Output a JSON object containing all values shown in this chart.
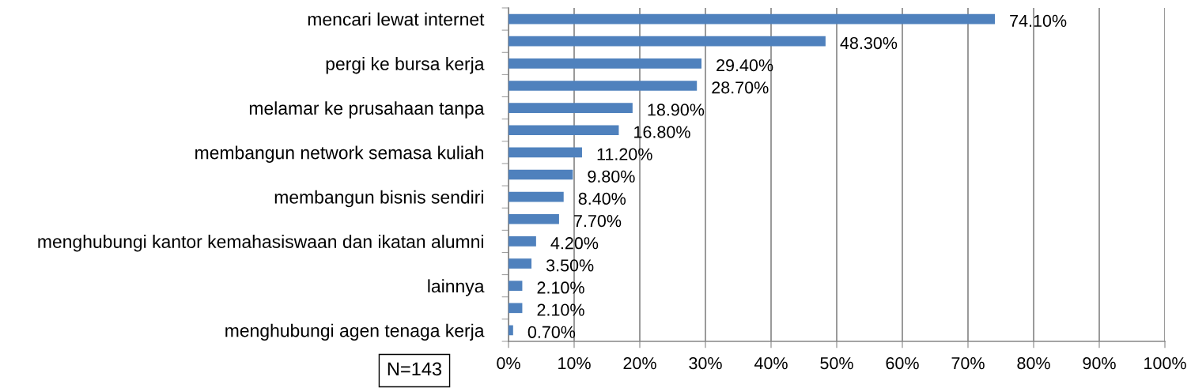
{
  "chart_data": {
    "type": "bar",
    "orientation": "horizontal",
    "categories": [
      "mencari lewat internet",
      null,
      "pergi ke bursa kerja",
      null,
      "melamar ke prusahaan tanpa",
      null,
      "membangun network semasa kuliah",
      null,
      "membangun bisnis sendiri",
      null,
      "menghubungi kantor kemahasiswaan dan ikatan alumni",
      null,
      "lainnya",
      null,
      "menghubungi agen tenaga kerja"
    ],
    "values": [
      74.1,
      48.3,
      29.4,
      28.7,
      18.9,
      16.8,
      11.2,
      9.8,
      8.4,
      7.7,
      4.2,
      3.5,
      2.1,
      2.1,
      0.7
    ],
    "value_labels": [
      "74.10%",
      "48.30%",
      "29.40%",
      "28.70%",
      "18.90%",
      "16.80%",
      "11.20%",
      "9.80%",
      "8.40%",
      "7.70%",
      "4.20%",
      "3.50%",
      "2.10%",
      "2.10%",
      "0.70%"
    ],
    "color": "#4f81bd",
    "xlim": [
      0,
      100
    ],
    "xticks": [
      {
        "value": 0,
        "label": "0%"
      },
      {
        "value": 10,
        "label": "10%"
      },
      {
        "value": 20,
        "label": "20%"
      },
      {
        "value": 30,
        "label": "30%"
      },
      {
        "value": 40,
        "label": "40%"
      },
      {
        "value": 50,
        "label": "50%"
      },
      {
        "value": 60,
        "label": "60%"
      },
      {
        "value": 70,
        "label": "70%"
      },
      {
        "value": 80,
        "label": "80%"
      },
      {
        "value": 90,
        "label": "90%"
      },
      {
        "value": 100,
        "label": "100%"
      }
    ],
    "grid": "x",
    "annotations": [
      "N=143"
    ]
  }
}
